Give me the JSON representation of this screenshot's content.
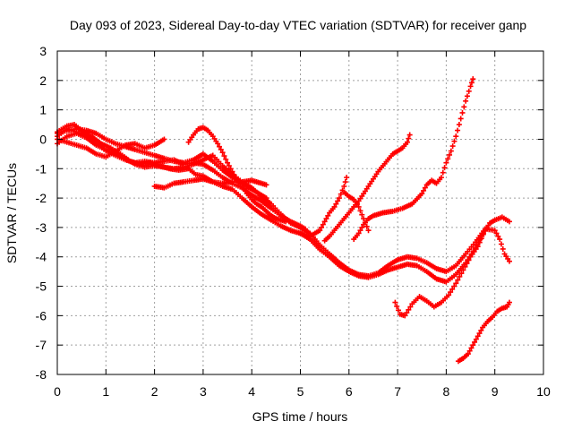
{
  "chart_data": {
    "type": "scatter",
    "title": "Day 093 of 2023, Sidereal Day-to-day VTEC variation (SDTVAR) for receiver ganp",
    "xlabel": "GPS time / hours",
    "ylabel": "SDTVAR / TECUs",
    "xlim": [
      0,
      10
    ],
    "ylim": [
      -8,
      3
    ],
    "xticks": [
      "0",
      "1",
      "2",
      "3",
      "4",
      "5",
      "6",
      "7",
      "8",
      "9",
      "10"
    ],
    "yticks": [
      "-8",
      "-7",
      "-6",
      "-5",
      "-4",
      "-3",
      "-2",
      "-1",
      "0",
      "1",
      "2",
      "3"
    ],
    "grid": true,
    "marker": "+",
    "color": "#ff0000",
    "series": [
      {
        "points": [
          [
            0.0,
            0.25
          ],
          [
            0.2,
            0.45
          ],
          [
            0.35,
            0.5
          ],
          [
            0.5,
            0.3
          ],
          [
            0.7,
            0.1
          ],
          [
            0.9,
            -0.15
          ],
          [
            1.1,
            -0.3
          ],
          [
            1.3,
            -0.5
          ],
          [
            1.5,
            -0.75
          ],
          [
            1.7,
            -0.85
          ],
          [
            1.9,
            -0.8
          ],
          [
            2.1,
            -0.9
          ],
          [
            2.3,
            -1.0
          ],
          [
            2.5,
            -1.05
          ],
          [
            2.7,
            -1.0
          ],
          [
            2.85,
            -1.2
          ],
          [
            3.0,
            -1.25
          ],
          [
            3.2,
            -1.45
          ],
          [
            3.4,
            -1.6
          ],
          [
            3.6,
            -1.7
          ],
          [
            3.8,
            -2.0
          ],
          [
            4.0,
            -2.3
          ],
          [
            4.2,
            -2.55
          ],
          [
            4.4,
            -2.75
          ],
          [
            4.6,
            -2.95
          ],
          [
            4.8,
            -3.1
          ],
          [
            5.0,
            -3.2
          ],
          [
            5.2,
            -3.4
          ],
          [
            5.4,
            -3.75
          ],
          [
            5.6,
            -4.0
          ],
          [
            5.8,
            -4.3
          ],
          [
            6.0,
            -4.5
          ],
          [
            6.2,
            -4.65
          ],
          [
            6.4,
            -4.7
          ],
          [
            6.6,
            -4.6
          ],
          [
            6.8,
            -4.45
          ],
          [
            7.0,
            -4.35
          ],
          [
            7.2,
            -4.25
          ],
          [
            7.4,
            -4.3
          ],
          [
            7.6,
            -4.5
          ],
          [
            7.8,
            -4.75
          ],
          [
            8.0,
            -4.85
          ],
          [
            8.2,
            -4.6
          ],
          [
            8.4,
            -4.2
          ],
          [
            8.6,
            -3.7
          ],
          [
            8.8,
            -3.1
          ],
          [
            8.9,
            -2.85
          ],
          [
            9.0,
            -2.75
          ],
          [
            9.15,
            -2.65
          ],
          [
            9.3,
            -2.8
          ]
        ]
      },
      {
        "points": [
          [
            0.0,
            0.1
          ],
          [
            0.2,
            0.35
          ],
          [
            0.4,
            0.25
          ],
          [
            0.6,
            0.1
          ],
          [
            0.8,
            -0.1
          ],
          [
            1.0,
            -0.4
          ],
          [
            1.2,
            -0.55
          ],
          [
            1.4,
            -0.7
          ],
          [
            1.6,
            -0.8
          ],
          [
            1.8,
            -0.75
          ],
          [
            2.0,
            -0.8
          ],
          [
            2.2,
            -0.75
          ],
          [
            2.4,
            -0.7
          ],
          [
            2.6,
            -0.85
          ],
          [
            2.8,
            -0.8
          ],
          [
            3.0,
            -0.85
          ],
          [
            3.2,
            -1.05
          ],
          [
            3.4,
            -1.3
          ],
          [
            3.6,
            -1.5
          ],
          [
            3.8,
            -1.65
          ],
          [
            4.0,
            -1.9
          ],
          [
            4.2,
            -2.1
          ],
          [
            4.4,
            -2.35
          ],
          [
            4.6,
            -2.6
          ],
          [
            4.8,
            -2.8
          ],
          [
            5.0,
            -2.95
          ],
          [
            5.1,
            -3.05
          ]
        ]
      },
      {
        "points": [
          [
            0.0,
            -0.15
          ],
          [
            0.2,
            0.1
          ],
          [
            0.4,
            0.2
          ],
          [
            0.6,
            0.05
          ],
          [
            0.8,
            -0.2
          ],
          [
            1.0,
            -0.35
          ],
          [
            1.2,
            -0.5
          ],
          [
            1.4,
            -0.65
          ],
          [
            1.6,
            -0.85
          ],
          [
            1.8,
            -0.95
          ],
          [
            2.0,
            -0.9
          ],
          [
            2.2,
            -0.95
          ],
          [
            2.4,
            -1.0
          ],
          [
            2.6,
            -0.95
          ],
          [
            2.8,
            -0.85
          ],
          [
            3.0,
            -0.7
          ],
          [
            3.2,
            -0.55
          ],
          [
            3.4,
            -0.9
          ],
          [
            3.6,
            -1.2
          ],
          [
            3.8,
            -1.45
          ],
          [
            4.0,
            -1.65
          ],
          [
            4.2,
            -1.95
          ],
          [
            4.4,
            -2.2
          ],
          [
            4.6,
            -2.55
          ],
          [
            4.8,
            -2.85
          ],
          [
            5.0,
            -3.0
          ],
          [
            5.2,
            -3.2
          ],
          [
            5.4,
            -3.6
          ],
          [
            5.6,
            -3.9
          ],
          [
            5.8,
            -4.2
          ],
          [
            6.0,
            -4.45
          ],
          [
            6.2,
            -4.6
          ],
          [
            6.4,
            -4.65
          ],
          [
            6.6,
            -4.55
          ],
          [
            6.8,
            -4.3
          ],
          [
            7.0,
            -4.1
          ],
          [
            7.2,
            -4.0
          ],
          [
            7.4,
            -4.05
          ],
          [
            7.6,
            -4.2
          ],
          [
            7.8,
            -4.4
          ],
          [
            8.0,
            -4.5
          ],
          [
            8.2,
            -4.3
          ],
          [
            8.4,
            -3.9
          ],
          [
            8.6,
            -3.5
          ],
          [
            8.8,
            -3.05
          ],
          [
            9.0,
            -3.1
          ],
          [
            9.1,
            -3.4
          ],
          [
            9.2,
            -3.9
          ],
          [
            9.3,
            -4.15
          ]
        ]
      },
      {
        "points": [
          [
            0.0,
            0.0
          ],
          [
            0.2,
            -0.1
          ],
          [
            0.4,
            -0.2
          ],
          [
            0.6,
            -0.3
          ],
          [
            0.8,
            -0.5
          ],
          [
            1.0,
            -0.6
          ],
          [
            1.2,
            -0.4
          ],
          [
            1.4,
            -0.2
          ],
          [
            1.6,
            -0.15
          ],
          [
            1.8,
            -0.3
          ],
          [
            2.0,
            -0.2
          ],
          [
            2.1,
            -0.1
          ],
          [
            2.2,
            0.0
          ]
        ]
      },
      {
        "points": [
          [
            0.0,
            0.2
          ],
          [
            0.2,
            0.3
          ],
          [
            0.4,
            0.35
          ],
          [
            0.6,
            0.3
          ],
          [
            0.8,
            0.2
          ],
          [
            1.0,
            0.0
          ],
          [
            1.2,
            -0.15
          ],
          [
            1.4,
            -0.25
          ],
          [
            1.6,
            -0.35
          ],
          [
            1.8,
            -0.45
          ],
          [
            2.0,
            -0.55
          ],
          [
            2.2,
            -0.65
          ],
          [
            2.4,
            -0.75
          ],
          [
            2.6,
            -0.8
          ],
          [
            2.8,
            -0.7
          ],
          [
            3.0,
            -0.5
          ],
          [
            3.2,
            -0.75
          ],
          [
            3.4,
            -1.05
          ],
          [
            3.6,
            -1.3
          ],
          [
            3.8,
            -1.5
          ],
          [
            4.0,
            -1.7
          ],
          [
            4.2,
            -1.9
          ],
          [
            4.3,
            -2.0
          ]
        ]
      },
      {
        "points": [
          [
            2.7,
            -0.1
          ],
          [
            2.8,
            0.15
          ],
          [
            2.9,
            0.35
          ],
          [
            3.0,
            0.4
          ],
          [
            3.1,
            0.3
          ],
          [
            3.2,
            0.1
          ],
          [
            3.3,
            -0.15
          ],
          [
            3.4,
            -0.45
          ],
          [
            3.5,
            -0.8
          ],
          [
            3.6,
            -1.1
          ],
          [
            3.7,
            -1.4
          ],
          [
            3.8,
            -1.6
          ],
          [
            3.9,
            -1.85
          ],
          [
            4.0,
            -2.05
          ],
          [
            4.1,
            -2.2
          ],
          [
            4.2,
            -2.3
          ],
          [
            4.3,
            -2.45
          ],
          [
            4.4,
            -2.6
          ],
          [
            4.5,
            -2.7
          ],
          [
            4.6,
            -2.75
          ],
          [
            4.7,
            -2.8
          ]
        ]
      },
      {
        "points": [
          [
            2.0,
            -1.6
          ],
          [
            2.2,
            -1.65
          ],
          [
            2.4,
            -1.5
          ],
          [
            2.6,
            -1.45
          ],
          [
            2.8,
            -1.4
          ],
          [
            3.0,
            -1.35
          ],
          [
            3.2,
            -1.45
          ],
          [
            3.4,
            -1.5
          ],
          [
            3.6,
            -1.45
          ],
          [
            3.8,
            -1.45
          ],
          [
            4.0,
            -1.4
          ],
          [
            4.2,
            -1.5
          ],
          [
            4.3,
            -1.55
          ]
        ]
      },
      {
        "points": [
          [
            5.0,
            -3.2
          ],
          [
            5.2,
            -3.3
          ],
          [
            5.4,
            -3.1
          ],
          [
            5.5,
            -2.8
          ],
          [
            5.6,
            -2.5
          ],
          [
            5.7,
            -2.3
          ],
          [
            5.8,
            -2.0
          ],
          [
            5.9,
            -1.6
          ],
          [
            5.95,
            -1.3
          ]
        ]
      },
      {
        "points": [
          [
            5.5,
            -3.45
          ],
          [
            5.6,
            -3.3
          ],
          [
            5.7,
            -3.1
          ],
          [
            5.8,
            -2.9
          ],
          [
            5.9,
            -2.7
          ],
          [
            6.0,
            -2.5
          ],
          [
            6.1,
            -2.3
          ],
          [
            6.2,
            -2.1
          ],
          [
            6.3,
            -1.85
          ],
          [
            6.4,
            -1.6
          ],
          [
            6.5,
            -1.35
          ],
          [
            6.6,
            -1.1
          ],
          [
            6.7,
            -0.9
          ],
          [
            6.8,
            -0.7
          ],
          [
            6.9,
            -0.5
          ],
          [
            7.0,
            -0.4
          ],
          [
            7.1,
            -0.3
          ],
          [
            7.2,
            -0.1
          ],
          [
            7.25,
            0.15
          ]
        ]
      },
      {
        "points": [
          [
            5.9,
            -1.8
          ],
          [
            6.0,
            -1.95
          ],
          [
            6.1,
            -2.05
          ],
          [
            6.2,
            -2.3
          ],
          [
            6.3,
            -2.7
          ],
          [
            6.4,
            -3.1
          ]
        ]
      },
      {
        "points": [
          [
            6.1,
            -3.4
          ],
          [
            6.2,
            -3.2
          ],
          [
            6.3,
            -2.9
          ],
          [
            6.4,
            -2.7
          ],
          [
            6.5,
            -2.6
          ],
          [
            6.7,
            -2.5
          ],
          [
            6.9,
            -2.45
          ],
          [
            7.1,
            -2.35
          ],
          [
            7.3,
            -2.2
          ],
          [
            7.5,
            -1.85
          ],
          [
            7.6,
            -1.55
          ],
          [
            7.7,
            -1.4
          ],
          [
            7.8,
            -1.5
          ],
          [
            7.9,
            -1.3
          ],
          [
            8.0,
            -0.8
          ],
          [
            8.1,
            -0.4
          ],
          [
            8.2,
            0.1
          ],
          [
            8.3,
            0.7
          ],
          [
            8.4,
            1.3
          ],
          [
            8.5,
            1.8
          ],
          [
            8.55,
            2.05
          ]
        ]
      },
      {
        "points": [
          [
            6.95,
            -5.55
          ],
          [
            7.05,
            -5.95
          ],
          [
            7.15,
            -6.0
          ],
          [
            7.3,
            -5.6
          ],
          [
            7.45,
            -5.35
          ],
          [
            7.6,
            -5.5
          ],
          [
            7.75,
            -5.7
          ],
          [
            7.9,
            -5.55
          ],
          [
            8.05,
            -5.3
          ],
          [
            8.2,
            -4.9
          ],
          [
            8.35,
            -4.45
          ],
          [
            8.5,
            -4.0
          ],
          [
            8.65,
            -3.65
          ],
          [
            8.8,
            -3.1
          ],
          [
            8.9,
            -2.85
          ]
        ]
      },
      {
        "points": [
          [
            8.25,
            -7.55
          ],
          [
            8.35,
            -7.45
          ],
          [
            8.45,
            -7.3
          ],
          [
            8.55,
            -7.0
          ],
          [
            8.65,
            -6.7
          ],
          [
            8.75,
            -6.4
          ],
          [
            8.85,
            -6.2
          ],
          [
            8.95,
            -6.05
          ],
          [
            9.05,
            -5.85
          ],
          [
            9.15,
            -5.75
          ],
          [
            9.25,
            -5.7
          ],
          [
            9.3,
            -5.55
          ]
        ]
      }
    ]
  }
}
